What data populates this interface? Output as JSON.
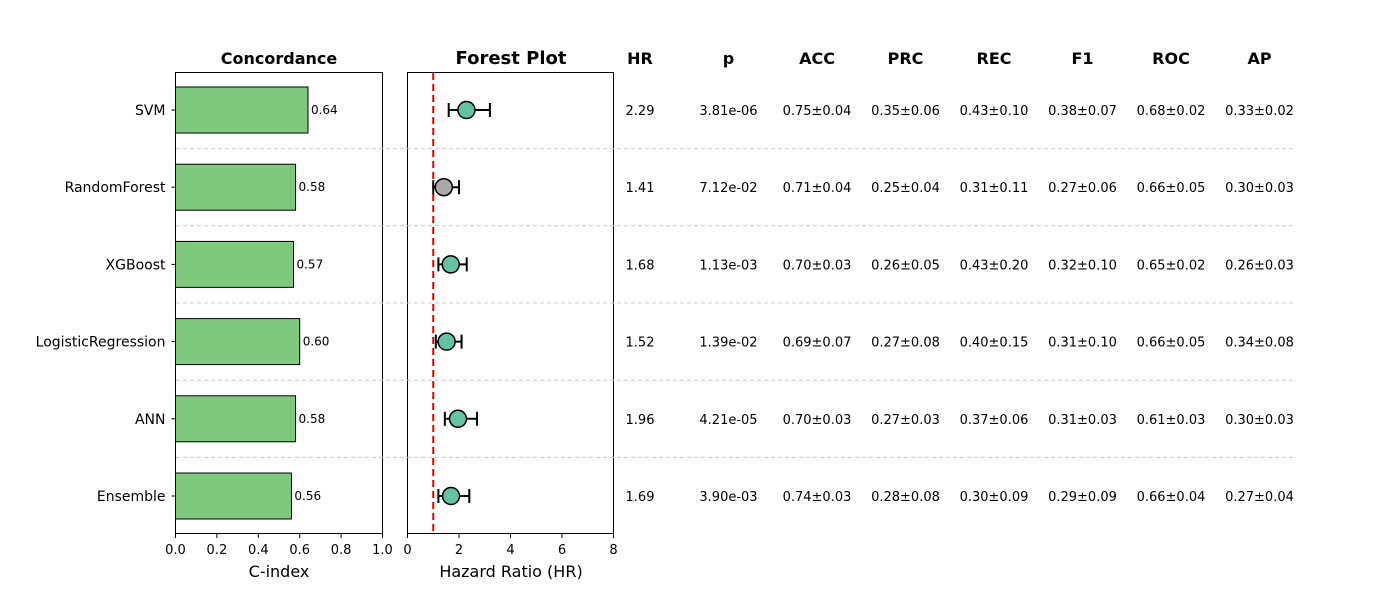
{
  "chart_data": [
    {
      "type": "bar",
      "orientation": "horizontal",
      "title": "Concordance",
      "xlabel": "C-index",
      "ylabel": "",
      "xlim": [
        0,
        1.0
      ],
      "xticks": [
        "0.0",
        "0.2",
        "0.4",
        "0.6",
        "0.8",
        "1.0"
      ],
      "categories": [
        "SVM",
        "RandomForest",
        "XGBoost",
        "LogisticRegression",
        "ANN",
        "Ensemble"
      ],
      "values": [
        0.64,
        0.58,
        0.57,
        0.6,
        0.58,
        0.56
      ],
      "value_labels": [
        "0.64",
        "0.58",
        "0.57",
        "0.60",
        "0.58",
        "0.56"
      ]
    },
    {
      "type": "scatter",
      "subtype": "forest",
      "title": "Forest Plot",
      "xlabel": "Hazard Ratio (HR)",
      "xlim": [
        0,
        8
      ],
      "xticks": [
        "0",
        "2",
        "4",
        "6",
        "8"
      ],
      "reference_line": 1.0,
      "categories": [
        "SVM",
        "RandomForest",
        "XGBoost",
        "LogisticRegression",
        "ANN",
        "Ensemble"
      ],
      "hr": [
        2.29,
        1.41,
        1.68,
        1.52,
        1.96,
        1.69
      ],
      "ci_lower": [
        1.6,
        1.0,
        1.2,
        1.1,
        1.45,
        1.2
      ],
      "ci_upper": [
        3.2,
        2.0,
        2.3,
        2.1,
        2.7,
        2.4
      ],
      "significant": [
        true,
        false,
        true,
        true,
        true,
        true
      ]
    },
    {
      "type": "table",
      "columns": [
        "HR",
        "p",
        "ACC",
        "PRC",
        "REC",
        "F1",
        "ROC",
        "AP"
      ],
      "rows": [
        [
          "2.29",
          "3.81e-06",
          "0.75±0.04",
          "0.35±0.06",
          "0.43±0.10",
          "0.38±0.07",
          "0.68±0.02",
          "0.33±0.02"
        ],
        [
          "1.41",
          "7.12e-02",
          "0.71±0.04",
          "0.25±0.04",
          "0.31±0.11",
          "0.27±0.06",
          "0.66±0.05",
          "0.30±0.03"
        ],
        [
          "1.68",
          "1.13e-03",
          "0.70±0.03",
          "0.26±0.05",
          "0.43±0.20",
          "0.32±0.10",
          "0.65±0.02",
          "0.26±0.03"
        ],
        [
          "1.52",
          "1.39e-02",
          "0.69±0.07",
          "0.27±0.08",
          "0.40±0.15",
          "0.31±0.10",
          "0.66±0.05",
          "0.34±0.08"
        ],
        [
          "1.96",
          "4.21e-05",
          "0.70±0.03",
          "0.27±0.03",
          "0.37±0.06",
          "0.31±0.03",
          "0.61±0.03",
          "0.30±0.03"
        ],
        [
          "1.69",
          "3.90e-03",
          "0.74±0.03",
          "0.28±0.08",
          "0.30±0.09",
          "0.29±0.09",
          "0.66±0.04",
          "0.27±0.04"
        ]
      ]
    }
  ],
  "colors": {
    "bar_fill": "#7fc97f",
    "sig_point": "#66c2a5",
    "nonsig_point": "#aaaaaa",
    "ref_line": "#e00000",
    "separator": "#cccccc"
  }
}
